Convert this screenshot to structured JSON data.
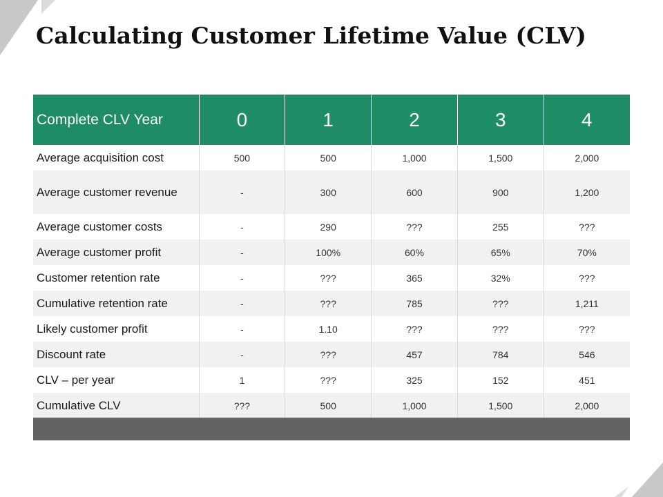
{
  "title": "Calculating Customer Lifetime Value (CLV)",
  "colors": {
    "header_bg": "#1e8c64",
    "footer_bar": "#636363",
    "row_alt": "#f1f1f1"
  },
  "table": {
    "header_label": "Complete CLV Year",
    "years": [
      "0",
      "1",
      "2",
      "3",
      "4"
    ],
    "rows": [
      {
        "label": "Average acquisition cost",
        "values": [
          "500",
          "500",
          "1,000",
          "1,500",
          "2,000"
        ]
      },
      {
        "label": "Average customer revenue",
        "values": [
          "-",
          "300",
          "600",
          "900",
          "1,200"
        ]
      },
      {
        "label": "Average customer costs",
        "values": [
          "-",
          "290",
          "???",
          "255",
          "???"
        ]
      },
      {
        "label": "Average customer profit",
        "values": [
          "-",
          "100%",
          "60%",
          "65%",
          "70%"
        ]
      },
      {
        "label": "Customer retention rate",
        "values": [
          "-",
          "???",
          "365",
          "32%",
          "???"
        ]
      },
      {
        "label": "Cumulative retention rate",
        "values": [
          "-",
          "???",
          "785",
          "???",
          "1,211"
        ]
      },
      {
        "label": "Likely customer profit",
        "values": [
          "-",
          "1.10",
          "???",
          "???",
          "???"
        ]
      },
      {
        "label": "Discount rate",
        "values": [
          "-",
          "???",
          "457",
          "784",
          "546"
        ]
      },
      {
        "label": "CLV – per year",
        "values": [
          "1",
          "???",
          "325",
          "152",
          "451"
        ]
      },
      {
        "label": "Cumulative CLV",
        "values": [
          "???",
          "500",
          "1,000",
          "1,500",
          "2,000"
        ]
      }
    ]
  }
}
